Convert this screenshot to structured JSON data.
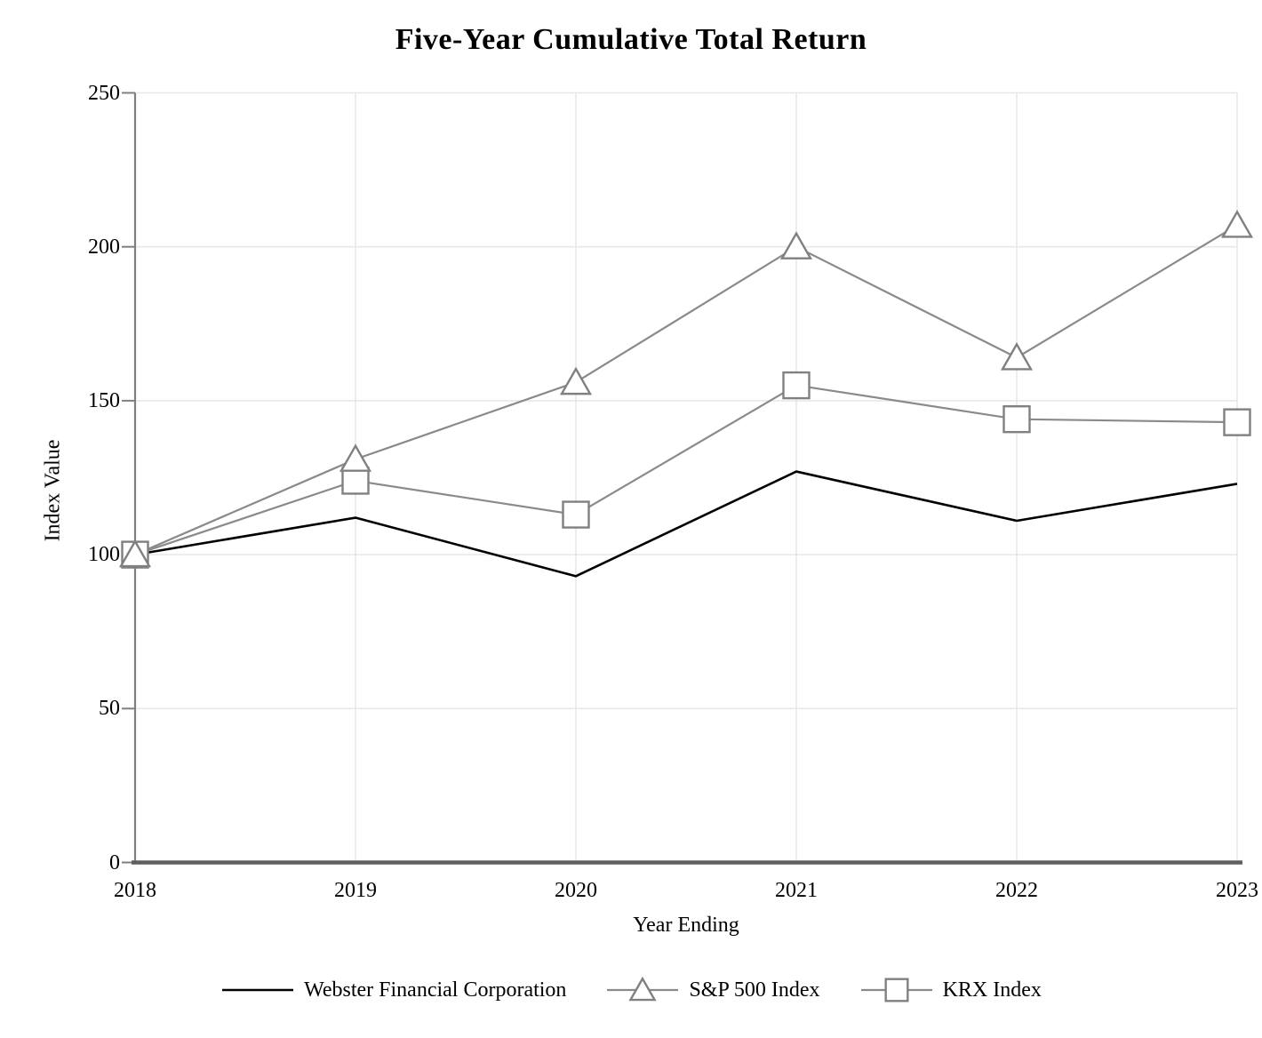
{
  "title": "Five-Year Cumulative Total Return",
  "chart_data": {
    "type": "line",
    "title": "Five-Year Cumulative Total Return",
    "xlabel": "Year Ending",
    "ylabel": "Index Value",
    "categories": [
      "2018",
      "2019",
      "2020",
      "2021",
      "2022",
      "2023"
    ],
    "yticks": [
      0,
      50,
      100,
      150,
      200,
      250
    ],
    "ylim": [
      0,
      250
    ],
    "grid": true,
    "legend_position": "bottom",
    "series": [
      {
        "name": "Webster Financial Corporation",
        "marker": "none",
        "color": "#000000",
        "line_width": 2.6,
        "values": [
          100,
          112,
          93,
          127,
          111,
          123
        ]
      },
      {
        "name": "S&P 500 Index",
        "marker": "triangle",
        "color": "#8a8a8a",
        "line_width": 2.2,
        "values": [
          100,
          131,
          156,
          200,
          164,
          207
        ]
      },
      {
        "name": "KRX Index",
        "marker": "square",
        "color": "#8a8a8a",
        "line_width": 2.2,
        "values": [
          100,
          124,
          113,
          155,
          144,
          143
        ]
      }
    ]
  },
  "colors": {
    "gridline": "#e8e8e8",
    "left_spine": "#808080",
    "bottom_spine": "#5f5f5f",
    "tick": "#808080",
    "marker_stroke": "#808080",
    "marker_fill": "#ffffff",
    "text": "#000000"
  }
}
